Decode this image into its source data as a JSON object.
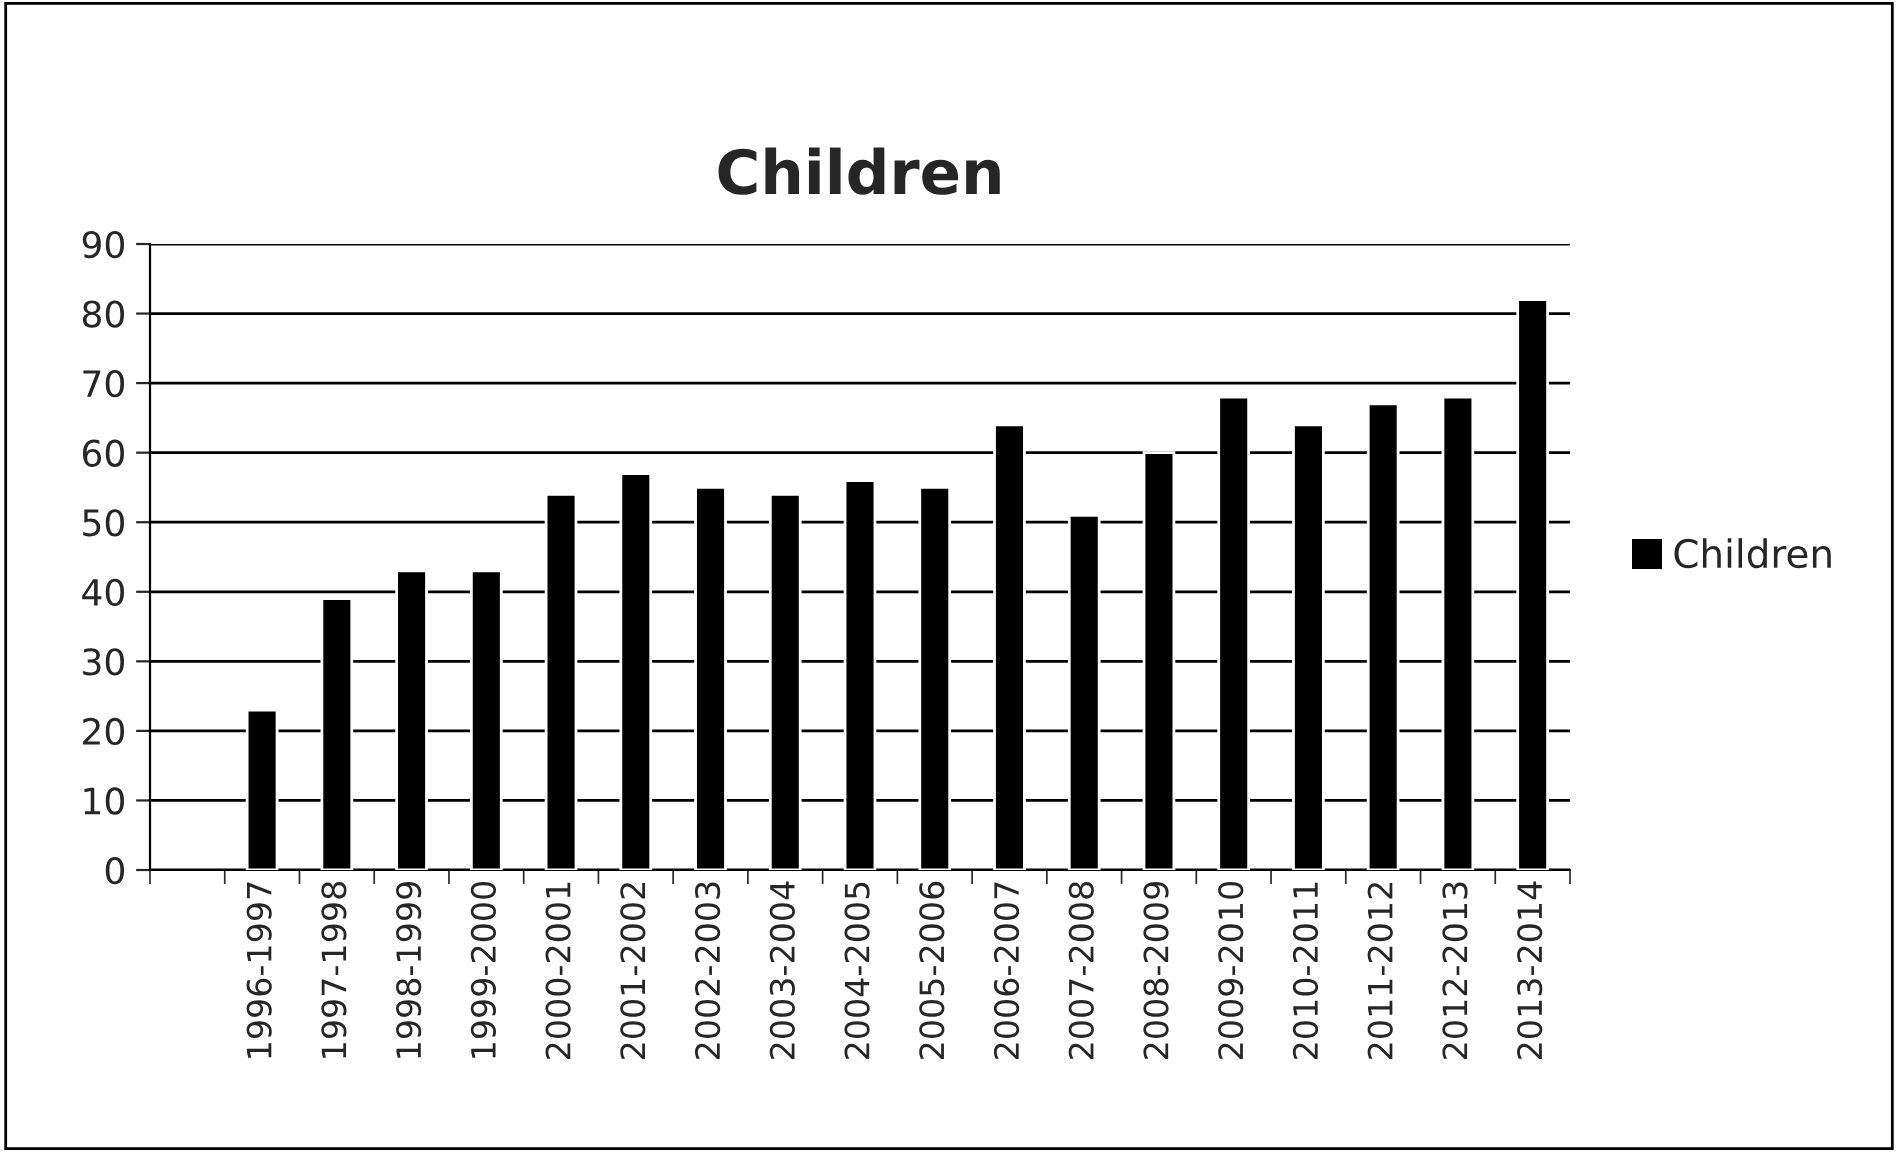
{
  "chart_data": {
    "type": "bar",
    "title": "Children",
    "categories": [
      null,
      "1996-1997",
      "1997-1998",
      "1998-1999",
      "1999-2000",
      "2000-2001",
      "2001-2002",
      "2002-2003",
      "2003-2004",
      "2004-2005",
      "2005-2006",
      "2006-2007",
      "2007-2008",
      "2008-2009",
      "2009-2010",
      "2010-2011",
      "2011-2012",
      "2012-2013",
      "2013-2014"
    ],
    "series": [
      {
        "name": "Children",
        "color": "#000000",
        "values": [
          null,
          23,
          39,
          43,
          43,
          54,
          57,
          55,
          54,
          56,
          55,
          64,
          51,
          60,
          68,
          64,
          67,
          68,
          82
        ]
      }
    ],
    "ylim": [
      0,
      90
    ],
    "yticks": [
      0,
      10,
      20,
      30,
      40,
      50,
      60,
      70,
      80,
      90
    ],
    "grid": "y",
    "legend": "right"
  }
}
